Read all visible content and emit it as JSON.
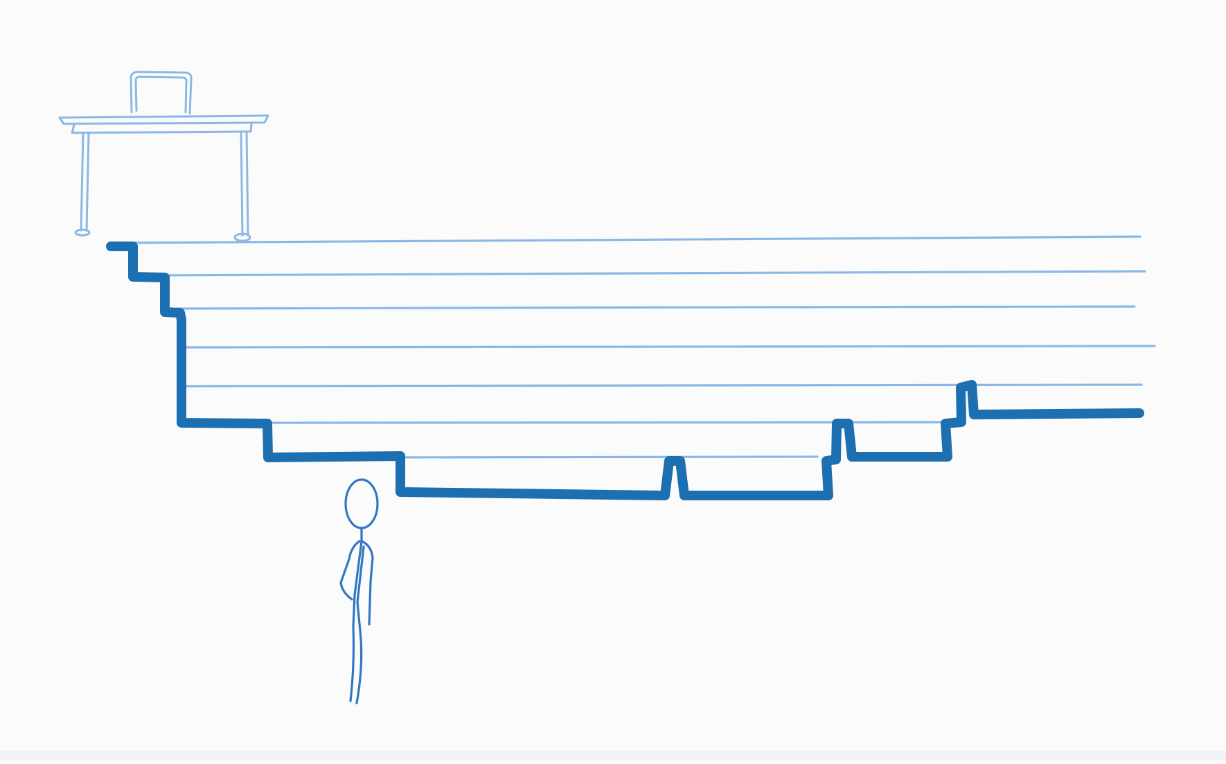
{
  "scene": {
    "background": "#fbfbfc",
    "line_color": "#8ab8e6",
    "path_color": "#1c6fb1",
    "figure_color": "#2f78c2",
    "icons": [
      "desk-icon",
      "laptop-icon",
      "stick-figure-icon"
    ],
    "horizontal_levels": 7
  }
}
